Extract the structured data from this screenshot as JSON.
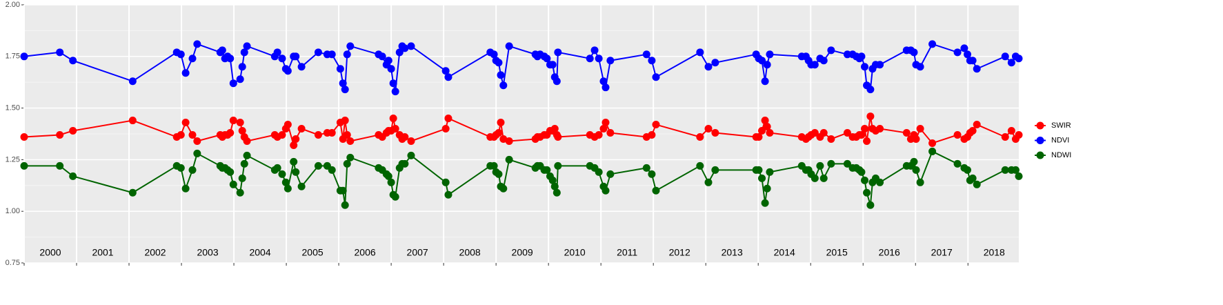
{
  "chart_data": {
    "type": "line",
    "x": [
      2000.0,
      2000.68,
      2000.93,
      2002.07,
      2002.91,
      2002.99,
      2003.08,
      2003.21,
      2003.3,
      2003.74,
      2003.78,
      2003.83,
      2003.88,
      2003.93,
      2003.99,
      2004.12,
      2004.16,
      2004.2,
      2004.25,
      2004.78,
      2004.83,
      2004.92,
      2004.99,
      2005.03,
      2005.14,
      2005.18,
      2005.29,
      2005.61,
      2005.78,
      2005.87,
      2006.03,
      2006.08,
      2006.12,
      2006.16,
      2006.22,
      2006.76,
      2006.83,
      2006.91,
      2006.95,
      2007.0,
      2007.04,
      2007.08,
      2007.16,
      2007.21,
      2007.26,
      2007.38,
      2008.04,
      2008.09,
      2008.89,
      2008.96,
      2009.0,
      2009.05,
      2009.09,
      2009.14,
      2009.25,
      2009.75,
      2009.79,
      2009.84,
      2009.92,
      2009.97,
      2010.03,
      2010.08,
      2010.12,
      2010.16,
      2010.18,
      2010.79,
      2010.88,
      2010.96,
      2011.05,
      2011.09,
      2011.18,
      2011.87,
      2011.97,
      2012.05,
      2012.89,
      2013.05,
      2013.18,
      2013.96,
      2014.01,
      2014.07,
      2014.13,
      2014.17,
      2014.22,
      2014.83,
      2014.91,
      2014.96,
      2015.01,
      2015.08,
      2015.18,
      2015.25,
      2015.39,
      2015.7,
      2015.8,
      2015.87,
      2015.93,
      2015.97,
      2016.03,
      2016.07,
      2016.14,
      2016.18,
      2016.24,
      2016.32,
      2016.83,
      2016.91,
      2016.97,
      2017.01,
      2017.09,
      2017.32,
      2017.8,
      2017.93,
      2017.99,
      2018.04,
      2018.09,
      2018.17,
      2018.71,
      2018.83,
      2018.91,
      2018.97
    ],
    "series": [
      {
        "name": "SWIR",
        "color": "#ff0000",
        "values": [
          1.36,
          1.37,
          1.39,
          1.44,
          1.36,
          1.37,
          1.43,
          1.37,
          1.34,
          1.37,
          1.36,
          1.37,
          1.37,
          1.38,
          1.44,
          1.43,
          1.39,
          1.36,
          1.34,
          1.37,
          1.36,
          1.37,
          1.4,
          1.42,
          1.32,
          1.35,
          1.4,
          1.37,
          1.38,
          1.38,
          1.43,
          1.35,
          1.44,
          1.37,
          1.34,
          1.37,
          1.36,
          1.38,
          1.39,
          1.39,
          1.45,
          1.4,
          1.37,
          1.35,
          1.36,
          1.34,
          1.4,
          1.45,
          1.36,
          1.36,
          1.37,
          1.38,
          1.43,
          1.35,
          1.34,
          1.35,
          1.36,
          1.36,
          1.37,
          1.37,
          1.39,
          1.39,
          1.4,
          1.37,
          1.36,
          1.37,
          1.36,
          1.37,
          1.4,
          1.43,
          1.38,
          1.36,
          1.37,
          1.42,
          1.36,
          1.4,
          1.38,
          1.36,
          1.36,
          1.39,
          1.44,
          1.41,
          1.38,
          1.36,
          1.35,
          1.36,
          1.37,
          1.38,
          1.36,
          1.38,
          1.35,
          1.38,
          1.36,
          1.36,
          1.37,
          1.37,
          1.4,
          1.34,
          1.46,
          1.4,
          1.39,
          1.4,
          1.38,
          1.35,
          1.37,
          1.35,
          1.4,
          1.33,
          1.37,
          1.35,
          1.36,
          1.38,
          1.39,
          1.42,
          1.36,
          1.39,
          1.35,
          1.37
        ]
      },
      {
        "name": "NDVI",
        "color": "#0000ff",
        "values": [
          1.75,
          1.77,
          1.73,
          1.63,
          1.77,
          1.76,
          1.67,
          1.74,
          1.81,
          1.77,
          1.78,
          1.74,
          1.75,
          1.74,
          1.62,
          1.64,
          1.7,
          1.77,
          1.8,
          1.75,
          1.77,
          1.74,
          1.69,
          1.68,
          1.75,
          1.75,
          1.7,
          1.77,
          1.76,
          1.76,
          1.69,
          1.62,
          1.59,
          1.76,
          1.8,
          1.76,
          1.75,
          1.71,
          1.73,
          1.69,
          1.62,
          1.58,
          1.77,
          1.8,
          1.79,
          1.8,
          1.68,
          1.65,
          1.77,
          1.76,
          1.73,
          1.72,
          1.66,
          1.61,
          1.8,
          1.76,
          1.75,
          1.76,
          1.75,
          1.74,
          1.71,
          1.71,
          1.65,
          1.63,
          1.77,
          1.74,
          1.78,
          1.74,
          1.63,
          1.6,
          1.73,
          1.76,
          1.73,
          1.65,
          1.77,
          1.7,
          1.72,
          1.76,
          1.74,
          1.73,
          1.63,
          1.71,
          1.76,
          1.75,
          1.75,
          1.73,
          1.71,
          1.71,
          1.74,
          1.73,
          1.78,
          1.76,
          1.76,
          1.75,
          1.74,
          1.75,
          1.7,
          1.61,
          1.59,
          1.69,
          1.71,
          1.71,
          1.78,
          1.78,
          1.77,
          1.71,
          1.7,
          1.81,
          1.77,
          1.79,
          1.76,
          1.73,
          1.73,
          1.69,
          1.75,
          1.72,
          1.75,
          1.74
        ]
      },
      {
        "name": "NDWI",
        "color": "#006400",
        "values": [
          1.22,
          1.22,
          1.17,
          1.09,
          1.22,
          1.21,
          1.11,
          1.2,
          1.28,
          1.22,
          1.21,
          1.21,
          1.2,
          1.19,
          1.13,
          1.09,
          1.16,
          1.23,
          1.27,
          1.2,
          1.21,
          1.18,
          1.14,
          1.11,
          1.24,
          1.19,
          1.12,
          1.22,
          1.22,
          1.2,
          1.1,
          1.1,
          1.03,
          1.23,
          1.26,
          1.21,
          1.2,
          1.18,
          1.17,
          1.14,
          1.08,
          1.07,
          1.21,
          1.23,
          1.23,
          1.27,
          1.14,
          1.08,
          1.22,
          1.22,
          1.19,
          1.18,
          1.12,
          1.11,
          1.25,
          1.21,
          1.22,
          1.22,
          1.2,
          1.2,
          1.17,
          1.15,
          1.12,
          1.09,
          1.22,
          1.22,
          1.21,
          1.19,
          1.12,
          1.1,
          1.18,
          1.21,
          1.18,
          1.1,
          1.22,
          1.14,
          1.2,
          1.2,
          1.2,
          1.16,
          1.04,
          1.11,
          1.19,
          1.22,
          1.2,
          1.2,
          1.18,
          1.16,
          1.22,
          1.16,
          1.23,
          1.23,
          1.21,
          1.21,
          1.2,
          1.19,
          1.15,
          1.09,
          1.03,
          1.14,
          1.16,
          1.14,
          1.22,
          1.22,
          1.24,
          1.2,
          1.14,
          1.29,
          1.23,
          1.21,
          1.2,
          1.15,
          1.16,
          1.13,
          1.2,
          1.2,
          1.2,
          1.17
        ]
      }
    ],
    "xlim": [
      2000,
      2018.97
    ],
    "xticks": [
      2000,
      2001,
      2002,
      2003,
      2004,
      2005,
      2006,
      2007,
      2008,
      2009,
      2010,
      2011,
      2012,
      2013,
      2014,
      2015,
      2016,
      2017,
      2018
    ],
    "ylim": [
      0.75,
      2.0
    ],
    "yticks": [
      0.75,
      {
        "value": 1.0,
        "label": "1.00"
      },
      1.25,
      {
        "value": 1.5,
        "label": "1.50"
      },
      1.75,
      {
        "value": 2.0,
        "label": "2.00"
      }
    ],
    "y_minor_ticks": [
      0.875,
      1.125,
      1.375,
      1.625,
      1.875
    ],
    "annotations": [
      "2000",
      "2001",
      "2002",
      "2003",
      "2004",
      "2005",
      "2006",
      "2007",
      "2008",
      "2009",
      "2010",
      "2011",
      "2012",
      "2013",
      "2014",
      "2015",
      "2016",
      "2017",
      "2018"
    ],
    "grid": true,
    "legend": "right"
  }
}
